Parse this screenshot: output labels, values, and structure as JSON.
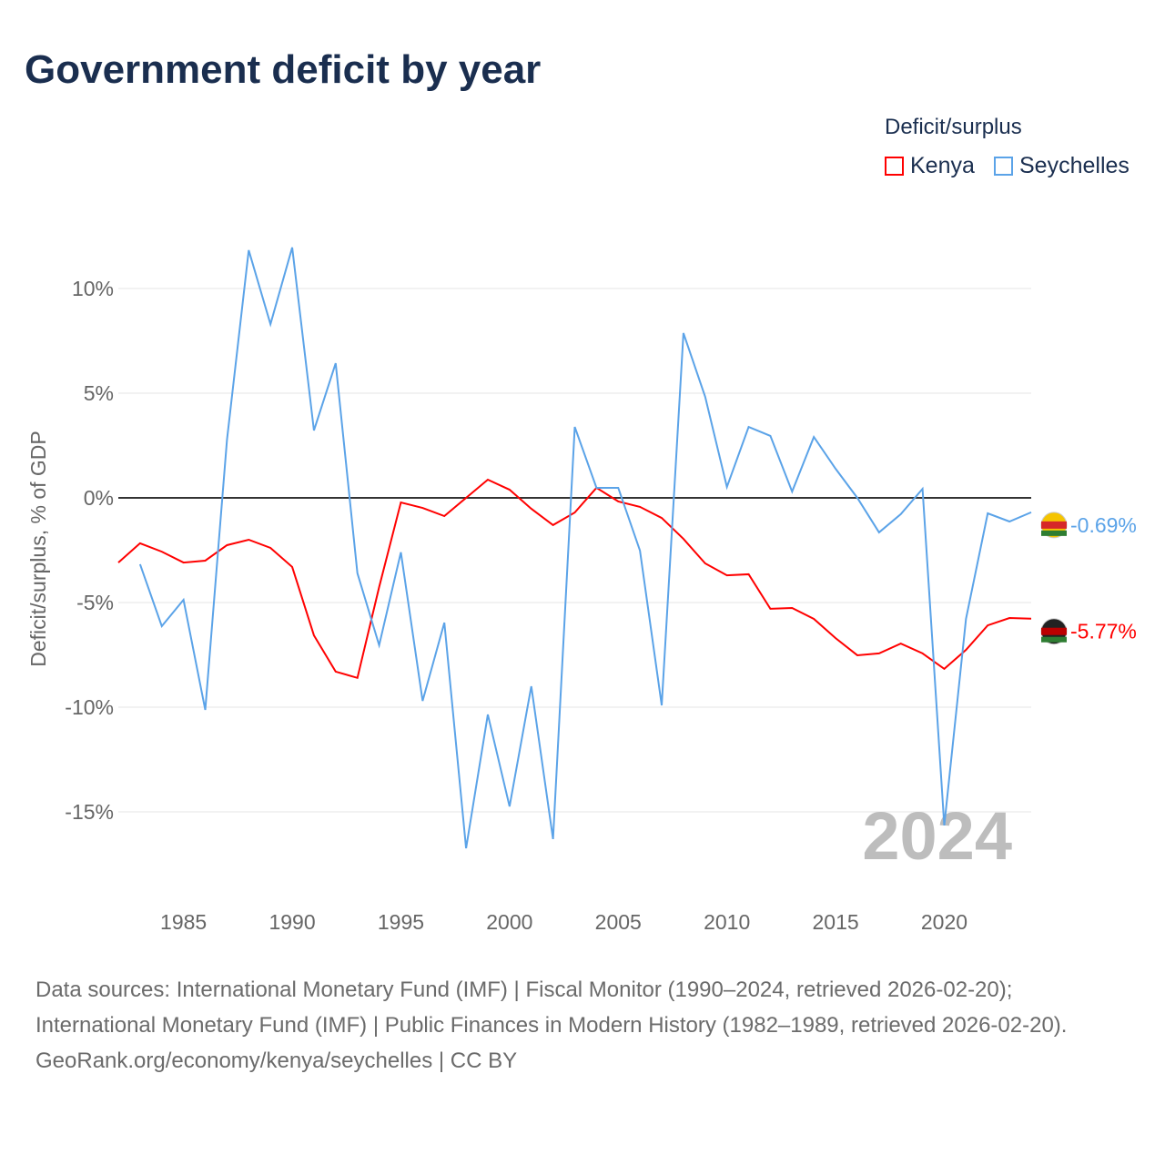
{
  "title": "Government deficit by year",
  "legend": {
    "title": "Deficit/surplus",
    "items": [
      {
        "label": "Kenya",
        "color": "#ff0000"
      },
      {
        "label": "Seychelles",
        "color": "#5ba3e8"
      }
    ]
  },
  "year_watermark": "2024",
  "footer": {
    "line1": "Data sources: International Monetary Fund (IMF) | Fiscal Monitor (1990–2024, retrieved 2026-02-20); International Monetary Fund (IMF) | Public Finances in Modern History (1982–1989, retrieved 2026-02-20).",
    "line2": "GeoRank.org/economy/kenya/seychelles | CC BY"
  },
  "chart_data": {
    "type": "line",
    "title": "Government deficit by year",
    "ylabel": "Deficit/surplus, % of GDP",
    "xlim": [
      1982,
      2024
    ],
    "ylim": [
      -18,
      13
    ],
    "yticks": [
      10,
      5,
      0,
      -5,
      -10,
      -15
    ],
    "ytick_labels": [
      "10%",
      "5%",
      "0%",
      "-5%",
      "-10%",
      "-15%"
    ],
    "xticks": [
      1985,
      1990,
      1995,
      2000,
      2005,
      2010,
      2015,
      2020
    ],
    "xtick_labels": [
      "1985",
      "1990",
      "1995",
      "2000",
      "2005",
      "2010",
      "2015",
      "2020"
    ],
    "series": [
      {
        "name": "Kenya",
        "color": "#ff0000",
        "start": 1982,
        "end_label": "-5.77%",
        "values": [
          -3.09,
          -2.17,
          -2.57,
          -3.09,
          -3.0,
          -2.26,
          -2.0,
          -2.39,
          -3.3,
          -6.57,
          -8.3,
          -8.6,
          -4.26,
          -0.22,
          -0.48,
          -0.87,
          0,
          0.87,
          0.39,
          -0.52,
          -1.3,
          -0.7,
          0.48,
          -0.17,
          -0.43,
          -0.96,
          -1.96,
          -3.13,
          -3.7,
          -3.65,
          -5.3,
          -5.26,
          -5.78,
          -6.7,
          -7.52,
          -7.43,
          -6.96,
          -7.43,
          -8.17,
          -7.26,
          -6.09,
          -5.74,
          -5.77
        ]
      },
      {
        "name": "Seychelles",
        "color": "#5ba3e8",
        "start": 1983,
        "end_label": "-0.69%",
        "values": [
          -3.17,
          -6.13,
          -4.87,
          -10.13,
          2.78,
          11.83,
          8.3,
          11.96,
          3.22,
          6.43,
          -3.6,
          -7.04,
          -2.6,
          -9.7,
          -5.96,
          -16.74,
          -10.35,
          -14.74,
          -9.0,
          -16.3,
          3.39,
          0.48,
          0.48,
          -2.52,
          -9.91,
          7.87,
          4.83,
          0.52,
          3.39,
          2.96,
          0.3,
          2.91,
          1.39,
          0,
          -1.65,
          -0.78,
          0.43,
          -15.65,
          -5.78,
          -0.74,
          -1.13,
          -0.69
        ]
      }
    ]
  }
}
